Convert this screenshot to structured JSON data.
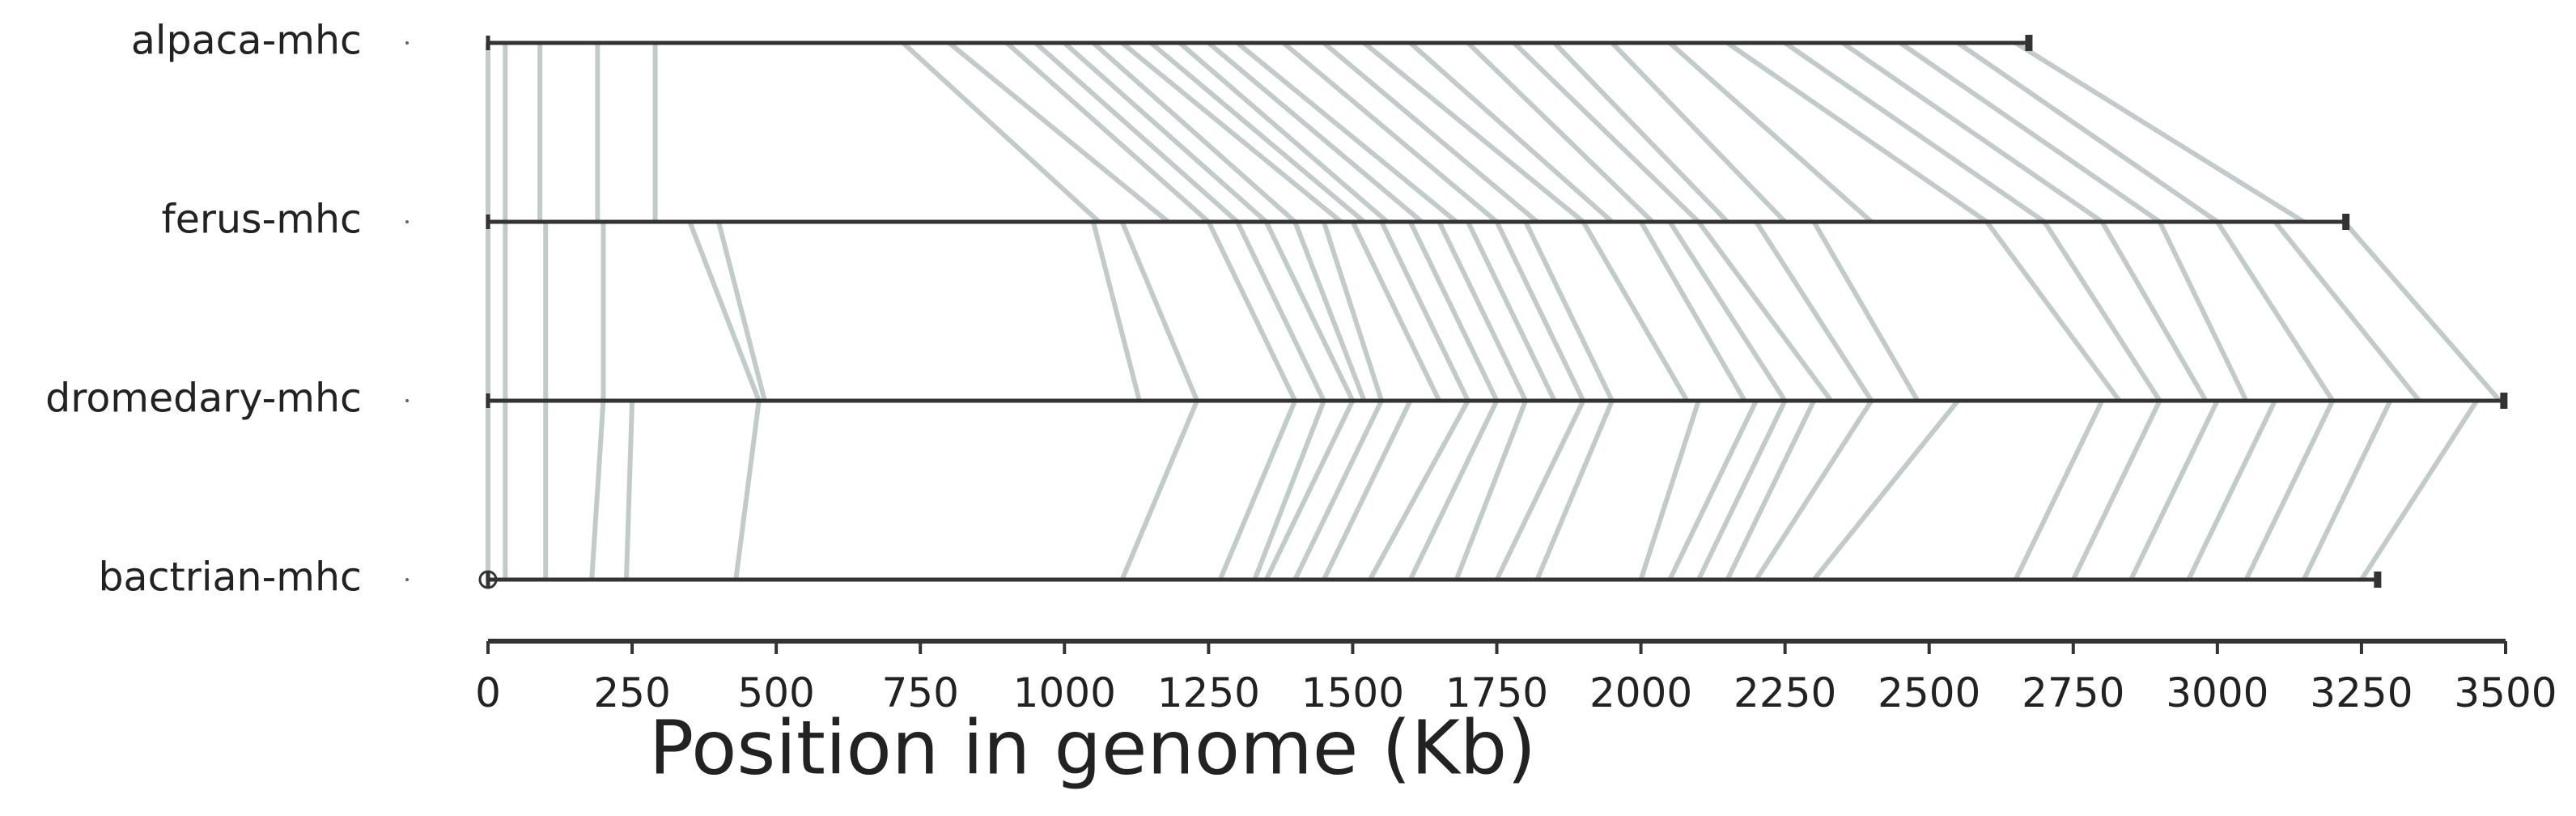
{
  "chart_data": {
    "type": "synteny",
    "xlabel": "Position in genome (Kb)",
    "xlim": [
      0,
      3500
    ],
    "xticks": [
      0,
      250,
      500,
      750,
      1000,
      1250,
      1500,
      1750,
      2000,
      2250,
      2500,
      2750,
      3000,
      3250,
      3500
    ],
    "line_color": "#333333",
    "link_color": "#b9c1c1",
    "genomes": [
      {
        "name": "alpaca-mhc",
        "length": 2673
      },
      {
        "name": "ferus-mhc",
        "length": 3223
      },
      {
        "name": "dromedary-mhc",
        "length": 3497
      },
      {
        "name": "bactrian-mhc",
        "length": 3278
      }
    ],
    "links": [
      {
        "pairs": [
          [
            0,
            0
          ],
          [
            30,
            30
          ],
          [
            90,
            90
          ],
          [
            190,
            190
          ],
          [
            290,
            290
          ],
          [
            720,
            1060
          ],
          [
            800,
            1180
          ],
          [
            900,
            1250
          ],
          [
            950,
            1300
          ],
          [
            1000,
            1350
          ],
          [
            1050,
            1400
          ],
          [
            1100,
            1480
          ],
          [
            1150,
            1520
          ],
          [
            1200,
            1560
          ],
          [
            1250,
            1620
          ],
          [
            1300,
            1680
          ],
          [
            1380,
            1750
          ],
          [
            1450,
            1820
          ],
          [
            1520,
            1900
          ],
          [
            1600,
            1950
          ],
          [
            1700,
            2020
          ],
          [
            1780,
            2100
          ],
          [
            1850,
            2150
          ],
          [
            1950,
            2250
          ],
          [
            2050,
            2400
          ],
          [
            2150,
            2600
          ],
          [
            2250,
            2700
          ],
          [
            2350,
            2800
          ],
          [
            2450,
            2900
          ],
          [
            2550,
            3000
          ],
          [
            2650,
            3150
          ]
        ]
      },
      {
        "pairs": [
          [
            0,
            0
          ],
          [
            30,
            30
          ],
          [
            100,
            100
          ],
          [
            200,
            200
          ],
          [
            350,
            470
          ],
          [
            400,
            480
          ],
          [
            1050,
            1130
          ],
          [
            1100,
            1230
          ],
          [
            1250,
            1400
          ],
          [
            1300,
            1450
          ],
          [
            1350,
            1500
          ],
          [
            1400,
            1520
          ],
          [
            1450,
            1550
          ],
          [
            1500,
            1650
          ],
          [
            1550,
            1700
          ],
          [
            1600,
            1750
          ],
          [
            1650,
            1800
          ],
          [
            1700,
            1850
          ],
          [
            1750,
            1900
          ],
          [
            1800,
            1950
          ],
          [
            1900,
            2080
          ],
          [
            2000,
            2180
          ],
          [
            2050,
            2250
          ],
          [
            2100,
            2330
          ],
          [
            2200,
            2400
          ],
          [
            2300,
            2480
          ],
          [
            2600,
            2830
          ],
          [
            2700,
            2900
          ],
          [
            2800,
            2980
          ],
          [
            2900,
            3050
          ],
          [
            3000,
            3200
          ],
          [
            3100,
            3350
          ],
          [
            3220,
            3490
          ]
        ]
      },
      {
        "pairs": [
          [
            0,
            0
          ],
          [
            30,
            30
          ],
          [
            100,
            100
          ],
          [
            200,
            180
          ],
          [
            250,
            240
          ],
          [
            470,
            430
          ],
          [
            1230,
            1100
          ],
          [
            1400,
            1270
          ],
          [
            1450,
            1330
          ],
          [
            1500,
            1350
          ],
          [
            1550,
            1400
          ],
          [
            1600,
            1450
          ],
          [
            1700,
            1530
          ],
          [
            1750,
            1600
          ],
          [
            1800,
            1680
          ],
          [
            1900,
            1750
          ],
          [
            1950,
            1820
          ],
          [
            2100,
            2000
          ],
          [
            2200,
            2050
          ],
          [
            2250,
            2100
          ],
          [
            2300,
            2150
          ],
          [
            2400,
            2200
          ],
          [
            2550,
            2300
          ],
          [
            2800,
            2650
          ],
          [
            2900,
            2750
          ],
          [
            3000,
            2850
          ],
          [
            3100,
            2950
          ],
          [
            3200,
            3050
          ],
          [
            3300,
            3150
          ],
          [
            3450,
            3250
          ]
        ]
      }
    ]
  }
}
